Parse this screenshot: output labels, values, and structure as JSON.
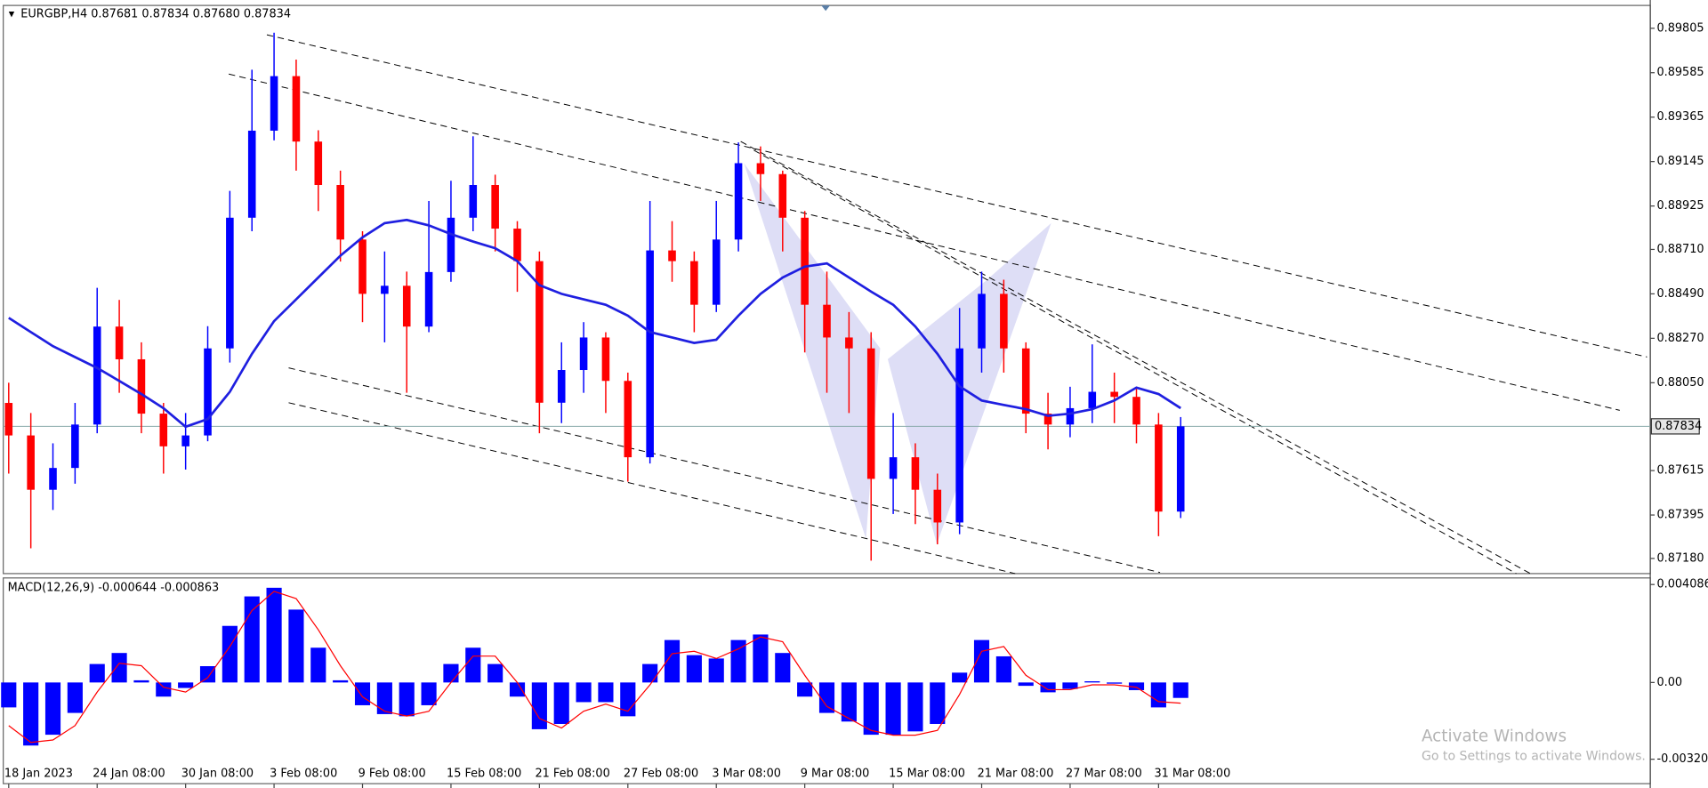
{
  "chart_data": [
    {
      "type": "candlestick",
      "title": "EURGBP,H4  0.87681 0.87834 0.87680 0.87834",
      "categories": [
        "18 Jan 2023",
        null,
        null,
        null,
        "24 Jan 08:00",
        null,
        null,
        null,
        "30 Jan 08:00",
        null,
        null,
        null,
        "3 Feb 08:00",
        null,
        null,
        null,
        "9 Feb 08:00",
        null,
        null,
        null,
        "15 Feb 08:00",
        null,
        null,
        null,
        "21 Feb 08:00",
        null,
        null,
        null,
        "27 Feb 08:00",
        null,
        null,
        null,
        "3 Mar 08:00",
        null,
        null,
        null,
        "9 Mar 08:00",
        null,
        null,
        null,
        "15 Mar 08:00",
        null,
        null,
        null,
        "21 Mar 08:00",
        null,
        null,
        null,
        "27 Mar 08:00",
        null,
        null,
        null,
        "31 Mar 08:00",
        null
      ],
      "open": [
        0.8795,
        0.87789,
        0.8752,
        0.87628,
        0.87843,
        0.88328,
        0.88166,
        0.87897,
        0.87735,
        0.87789,
        0.8822,
        0.88867,
        0.89298,
        0.89568,
        0.89244,
        0.89029,
        0.88759,
        0.8849,
        0.8853,
        0.88328,
        0.88598,
        0.88867,
        0.89029,
        0.88813,
        0.88652,
        0.87951,
        0.88113,
        0.88274,
        0.88059,
        0.87681,
        0.88705,
        0.88652,
        0.88436,
        0.88759,
        0.89137,
        0.89083,
        0.88867,
        0.88436,
        0.88274,
        0.8822,
        0.87574,
        0.87681,
        0.8752,
        0.87358,
        0.8822,
        0.8849,
        0.8822,
        0.87897,
        0.87843,
        0.87924,
        0.88005,
        0.8798,
        0.87843,
        0.87412
      ],
      "high": [
        0.8805,
        0.879,
        0.8775,
        0.8795,
        0.8852,
        0.8846,
        0.8825,
        0.8795,
        0.879,
        0.8833,
        0.89,
        0.896,
        0.89783,
        0.8965,
        0.893,
        0.891,
        0.888,
        0.887,
        0.886,
        0.8895,
        0.8905,
        0.8927,
        0.8908,
        0.8885,
        0.887,
        0.8825,
        0.8835,
        0.883,
        0.881,
        0.8895,
        0.8885,
        0.887,
        0.8895,
        0.8924,
        0.8922,
        0.891,
        0.889,
        0.886,
        0.884,
        0.883,
        0.879,
        0.8775,
        0.876,
        0.8842,
        0.886,
        0.8856,
        0.8825,
        0.88,
        0.8803,
        0.8824,
        0.881,
        0.8802,
        0.879,
        0.8788
      ],
      "low": [
        0.876,
        0.8723,
        0.8742,
        0.8755,
        0.878,
        0.88,
        0.878,
        0.876,
        0.8762,
        0.8776,
        0.8815,
        0.888,
        0.8925,
        0.891,
        0.889,
        0.8865,
        0.8835,
        0.8825,
        0.88,
        0.883,
        0.8855,
        0.888,
        0.887,
        0.885,
        0.878,
        0.8785,
        0.88,
        0.879,
        0.8756,
        0.8765,
        0.8855,
        0.883,
        0.884,
        0.887,
        0.8895,
        0.887,
        0.882,
        0.88,
        0.879,
        0.87169,
        0.874,
        0.8735,
        0.8725,
        0.873,
        0.881,
        0.881,
        0.878,
        0.8772,
        0.8778,
        0.8785,
        0.8785,
        0.8775,
        0.8729,
        0.8738
      ],
      "close": [
        0.87789,
        0.8752,
        0.87628,
        0.87843,
        0.88328,
        0.88166,
        0.87897,
        0.87735,
        0.87789,
        0.8822,
        0.88867,
        0.89298,
        0.89568,
        0.89244,
        0.89029,
        0.88759,
        0.8849,
        0.8853,
        0.88328,
        0.88598,
        0.88867,
        0.89029,
        0.88813,
        0.88652,
        0.87951,
        0.88113,
        0.88274,
        0.88059,
        0.87681,
        0.88705,
        0.88652,
        0.88436,
        0.88759,
        0.89137,
        0.89083,
        0.88867,
        0.88436,
        0.88274,
        0.8822,
        0.87574,
        0.87681,
        0.8752,
        0.87358,
        0.8822,
        0.8849,
        0.8822,
        0.87897,
        0.87843,
        0.87924,
        0.88005,
        0.8798,
        0.87843,
        0.87412,
        0.87834
      ],
      "up_color": "#0000ff",
      "down_color": "#ff0000",
      "ma": {
        "color": "#1f1fe0",
        "values": [
          0.88371,
          0.88301,
          0.88231,
          0.88177,
          0.88123,
          0.88059,
          0.87994,
          0.87924,
          0.87832,
          0.8787,
          0.88005,
          0.88193,
          0.88355,
          0.88463,
          0.88571,
          0.88679,
          0.8877,
          0.8884,
          0.88856,
          0.88829,
          0.88786,
          0.88749,
          0.88716,
          0.88652,
          0.88533,
          0.8849,
          0.88463,
          0.88436,
          0.88382,
          0.88301,
          0.88274,
          0.88247,
          0.88263,
          0.88382,
          0.8849,
          0.88571,
          0.88625,
          0.88641,
          0.88571,
          0.88501,
          0.88436,
          0.88328,
          0.88193,
          0.88032,
          0.87962,
          0.8794,
          0.87919,
          0.87886,
          0.87897,
          0.87919,
          0.87962,
          0.88026,
          0.87994,
          0.87924
        ]
      },
      "current_price": {
        "value": 0.87834,
        "label": "0.87834"
      },
      "ylim": [
        0.87105,
        0.89918
      ],
      "yticks": [
        {
          "value": 0.89805,
          "label": "0.89805"
        },
        {
          "value": 0.89585,
          "label": "0.89585"
        },
        {
          "value": 0.89365,
          "label": "0.89365"
        },
        {
          "value": 0.89145,
          "label": "0.89145"
        },
        {
          "value": 0.88925,
          "label": "0.88925"
        },
        {
          "value": 0.8871,
          "label": "0.88710"
        },
        {
          "value": 0.8849,
          "label": "0.88490"
        },
        {
          "value": 0.8827,
          "label": "0.88270"
        },
        {
          "value": 0.8805,
          "label": "0.88050"
        },
        {
          "value": 0.87615,
          "label": "0.87615"
        },
        {
          "value": 0.87395,
          "label": "0.87395"
        },
        {
          "value": 0.8718,
          "label": "0.87180"
        }
      ]
    },
    {
      "type": "bar",
      "title": "MACD(12,26,9) -0.000644 -0.000863",
      "color": "#0000ff",
      "values": [
        -0.00104,
        -0.00263,
        -0.00218,
        -0.00127,
        0.00077,
        0.00123,
        9e-05,
        -0.00059,
        -0.00023,
        0.00068,
        0.00236,
        0.00359,
        0.00395,
        0.00304,
        0.00145,
        9e-05,
        -0.00095,
        -0.00132,
        -0.00141,
        -0.00095,
        0.00077,
        0.00145,
        0.00077,
        -0.00059,
        -0.00195,
        -0.00173,
        -0.00082,
        -0.00082,
        -0.00141,
        0.00077,
        0.00177,
        0.00114,
        0.001,
        0.00177,
        0.002,
        0.00123,
        -0.00059,
        -0.00127,
        -0.00163,
        -0.00218,
        -0.00218,
        -0.00204,
        -0.00173,
        0.00041,
        0.00177,
        0.00109,
        -0.00014,
        -0.00041,
        -0.00027,
        5e-05,
        -5e-05,
        -0.00032,
        -0.00104,
        -0.000644
      ],
      "signal": {
        "color": "#ff0000",
        "values": [
          -0.0018,
          -0.0025,
          -0.0024,
          -0.0018,
          -0.0004,
          0.0008,
          0.0007,
          -0.0002,
          -0.0004,
          0.0002,
          0.0015,
          0.003,
          0.0038,
          0.0035,
          0.0022,
          0.0007,
          -0.0006,
          -0.0012,
          -0.0014,
          -0.0012,
          0,
          0.0011,
          0.0011,
          0,
          -0.0015,
          -0.0019,
          -0.0012,
          -0.0009,
          -0.0012,
          -0.0001,
          0.0012,
          0.0013,
          0.001,
          0.0014,
          0.0019,
          0.0017,
          0.0003,
          -0.001,
          -0.0015,
          -0.002,
          -0.0022,
          -0.0022,
          -0.002,
          -0.0005,
          0.0013,
          0.0015,
          0.0003,
          -0.0003,
          -0.0003,
          -0.0001,
          -0.0001,
          -0.0002,
          -0.0008,
          -0.000863
        ]
      },
      "ylim": [
        -0.00422,
        0.00436
      ],
      "yticks": [
        {
          "value": 0.004086,
          "label": "0.004086"
        },
        {
          "value": 0,
          "label": "0.00"
        },
        {
          "value": -0.003202,
          "label": "-0.003202"
        }
      ]
    }
  ],
  "watermark": {
    "title": "Activate Windows",
    "subtitle": "Go to Settings to activate Windows."
  }
}
